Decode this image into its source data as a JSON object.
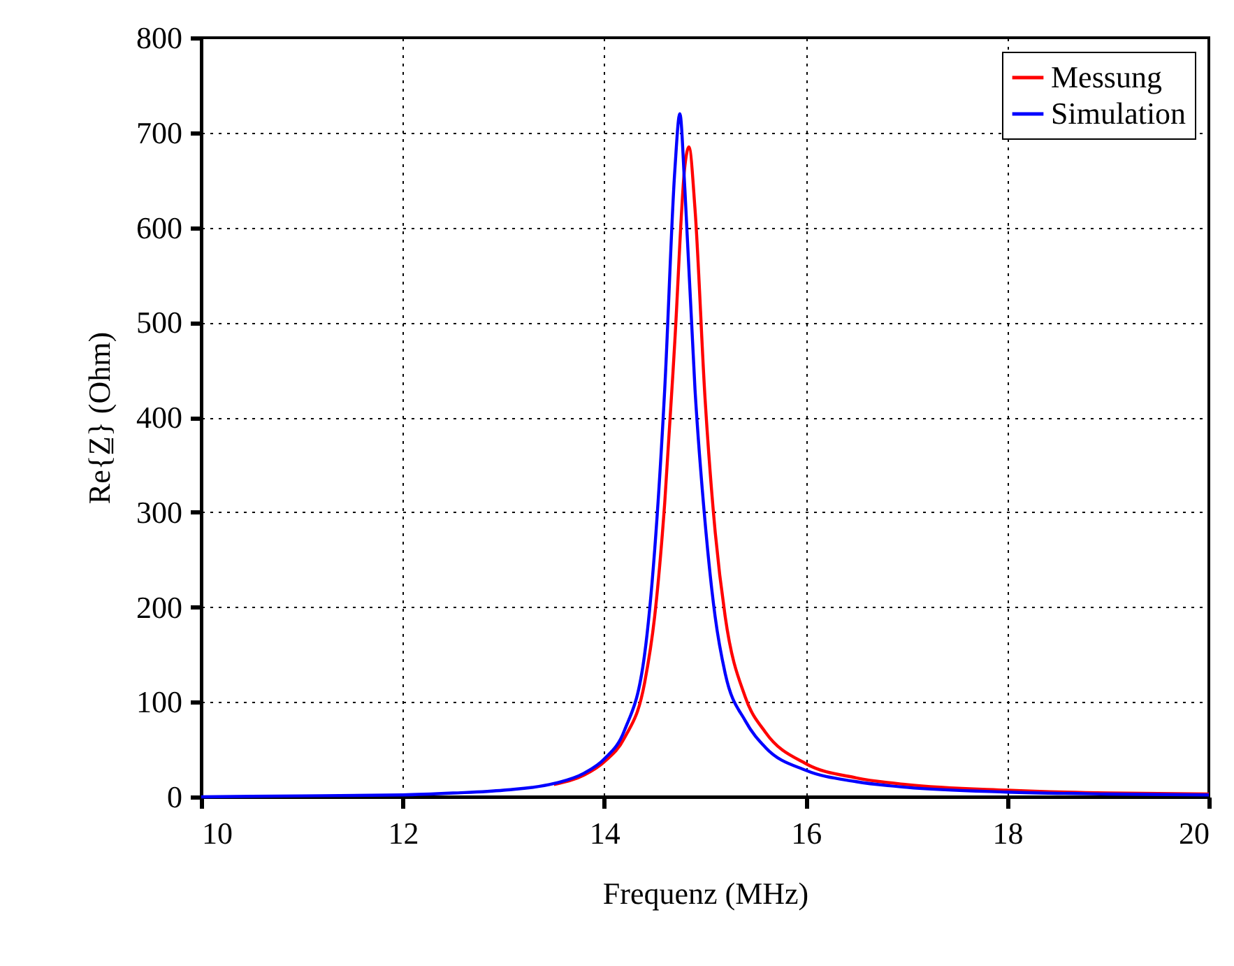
{
  "chart_data": {
    "type": "line",
    "xlabel": "Frequenz (MHz)",
    "ylabel": "Re{Z̲} (Ohm)",
    "xlim": [
      10,
      20
    ],
    "xticks": [
      10,
      12,
      14,
      16,
      18,
      20
    ],
    "ylim": [
      0,
      800
    ],
    "yticks": [
      0,
      100,
      200,
      300,
      400,
      500,
      600,
      700,
      800
    ],
    "grid": true,
    "legend": "top right",
    "line_style": "solid",
    "marker": "none",
    "series": [
      {
        "name": "Messung",
        "color": "#ff0000",
        "x": [
          13.5,
          13.8,
          14,
          14.2,
          14.4,
          14.5,
          14.6,
          14.7,
          14.8,
          14.84,
          14.9,
          15,
          15.1,
          15.2,
          15.4,
          15.6,
          16,
          16.5,
          17,
          18,
          19,
          20
        ],
        "values": [
          13,
          23,
          37,
          62,
          120,
          190,
          310,
          480,
          665,
          685,
          620,
          420,
          280,
          190,
          105,
          68,
          35,
          20,
          13,
          7,
          4,
          3
        ]
      },
      {
        "name": "Simulation",
        "color": "#0000ff",
        "x": [
          10,
          11,
          12,
          12.5,
          13,
          13.5,
          13.8,
          14,
          14.2,
          14.4,
          14.5,
          14.6,
          14.7,
          14.75,
          14.8,
          14.9,
          15,
          15.1,
          15.2,
          15.4,
          15.6,
          16,
          16.5,
          17,
          18,
          19,
          20
        ],
        "values": [
          0,
          1,
          2,
          4,
          7,
          14,
          25,
          40,
          70,
          150,
          260,
          430,
          660,
          720,
          640,
          430,
          290,
          190,
          130,
          80,
          52,
          28,
          16,
          10,
          5,
          3,
          2
        ]
      }
    ]
  }
}
